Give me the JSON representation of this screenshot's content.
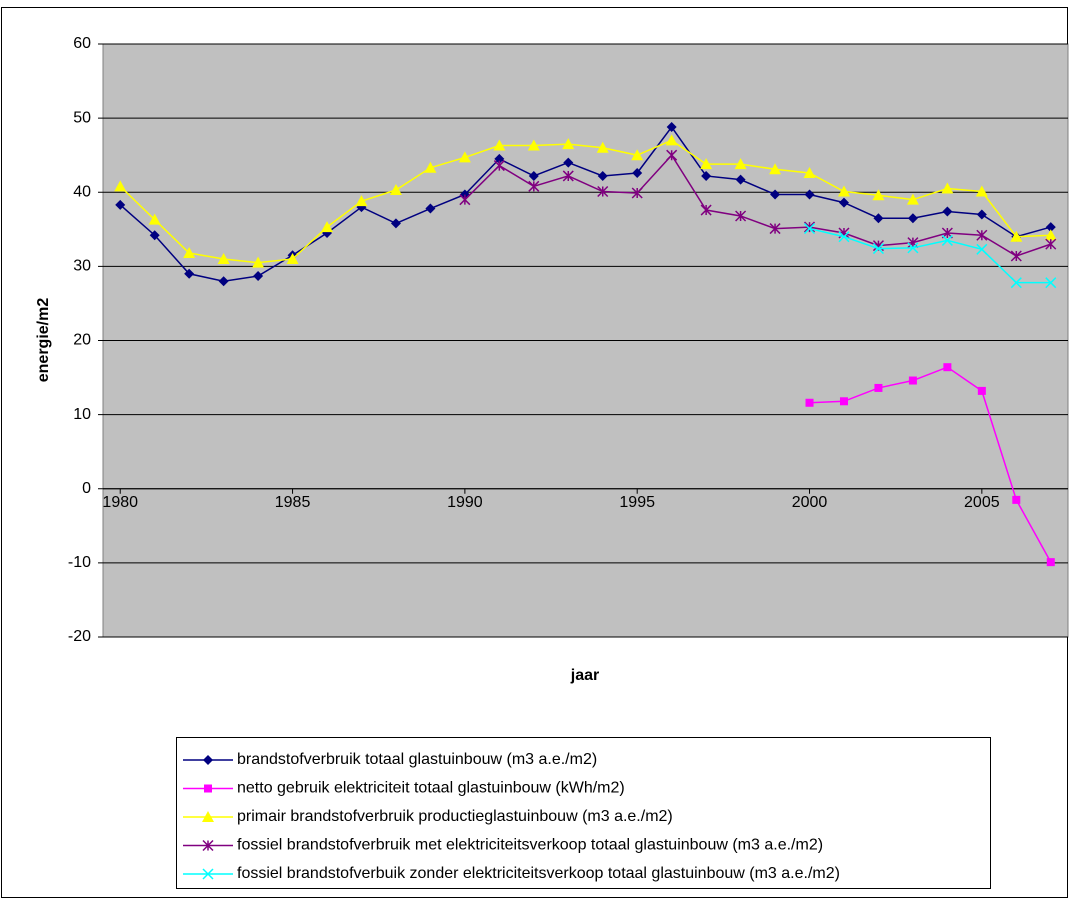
{
  "chart_data": {
    "type": "line",
    "x_label": "jaar",
    "y_label": "energie/m2",
    "x": [
      1980,
      1981,
      1982,
      1983,
      1984,
      1985,
      1986,
      1987,
      1988,
      1989,
      1990,
      1991,
      1992,
      1993,
      1994,
      1995,
      1996,
      1997,
      1998,
      1999,
      2000,
      2001,
      2002,
      2003,
      2004,
      2005,
      2006,
      2007
    ],
    "xlim": [
      1979.5,
      2007.5
    ],
    "xticks": [
      1980,
      1985,
      1990,
      1995,
      2000,
      2005
    ],
    "ylim": [
      -20,
      60
    ],
    "yticks": [
      -20,
      -10,
      0,
      10,
      20,
      30,
      40,
      50,
      60
    ],
    "grid": true,
    "legend": "bottom",
    "series": [
      {
        "name": "brandstofverbruik totaal glastuinbouw (m3 a.e./m2)",
        "color": "#000080",
        "marker": "diamond",
        "values": [
          38.3,
          34.2,
          29,
          28,
          28.7,
          31.5,
          34.5,
          38,
          35.8,
          37.8,
          39.7,
          44.5,
          42.2,
          44,
          42.2,
          42.6,
          48.8,
          42.2,
          41.7,
          39.7,
          39.7,
          38.6,
          36.5,
          36.5,
          37.4,
          37,
          34,
          35.3
        ]
      },
      {
        "name": "netto gebruik elektriciteit totaal glastuinbouw (kWh/m2)",
        "color": "#ff00ff",
        "marker": "square",
        "values": [
          null,
          null,
          null,
          null,
          null,
          null,
          null,
          null,
          null,
          null,
          null,
          null,
          null,
          null,
          null,
          null,
          null,
          null,
          null,
          null,
          11.6,
          11.8,
          13.6,
          14.6,
          16.4,
          13.2,
          -1.5,
          -9.9
        ]
      },
      {
        "name": "primair brandstofverbruik productieglastuinbouw (m3 a.e./m2)",
        "color": "#ffff00",
        "marker": "triangle",
        "values": [
          40.8,
          36.3,
          31.8,
          31,
          30.5,
          31,
          35.3,
          38.8,
          40.3,
          43.3,
          44.7,
          46.3,
          46.3,
          46.5,
          46,
          45,
          47,
          43.8,
          43.8,
          43.1,
          42.6,
          40.1,
          39.6,
          39,
          40.5,
          40.1,
          34,
          34.2
        ]
      },
      {
        "name": "fossiel brandstofverbruik met elektriciteitsverkoop totaal glastuinbouw (m3 a.e./m2)",
        "color": "#800080",
        "marker": "star",
        "values": [
          null,
          null,
          null,
          null,
          null,
          null,
          null,
          null,
          null,
          null,
          39,
          43.6,
          40.8,
          42.2,
          40.1,
          39.9,
          45,
          37.6,
          36.8,
          35.1,
          35.3,
          34.5,
          32.8,
          33.2,
          34.5,
          34.2,
          31.4,
          33
        ]
      },
      {
        "name": "fossiel brandstofverbuik zonder elektriciteitsverkoop totaal glastuinbouw (m3 a.e./m2)",
        "color": "#00ffff",
        "marker": "x",
        "values": [
          null,
          null,
          null,
          null,
          null,
          null,
          null,
          null,
          null,
          null,
          null,
          null,
          null,
          null,
          null,
          null,
          null,
          null,
          null,
          null,
          35.1,
          34,
          32.4,
          32.5,
          33.5,
          32.3,
          27.8,
          27.8
        ]
      }
    ]
  }
}
